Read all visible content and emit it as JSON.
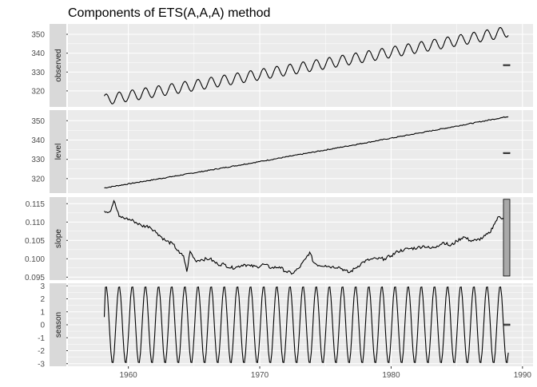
{
  "chart_data": {
    "type": "line",
    "title": "Components of ETS(A,A,A) method",
    "x_ticks": [
      1960,
      1970,
      1980,
      1990
    ],
    "xlim": [
      1955.4,
      1990.8
    ],
    "colors": {
      "panel_bg": "#ebebeb",
      "strip_bg": "#d9d9d9",
      "grid": "#ffffff",
      "line": "#000000",
      "range_bar": "#a9a9a9"
    },
    "panels": [
      {
        "label": "observed",
        "ylim": [
          311.5,
          355.5
        ],
        "y_ticks": [
          320,
          330,
          340,
          350
        ],
        "y_tick_labels": [
          "320",
          "330",
          "340",
          "350"
        ],
        "range_bar": {
          "low": 333.4,
          "high": 333.9
        },
        "generator": {
          "start": 1958.17,
          "end": 1988.9,
          "level_start": 315.3,
          "level_end": 351.5,
          "amplitude": 2.9,
          "quad": 2.5
        }
      },
      {
        "label": "level",
        "ylim": [
          312.5,
          355.5
        ],
        "y_ticks": [
          320,
          330,
          340,
          350
        ],
        "y_tick_labels": [
          "320",
          "330",
          "340",
          "350"
        ],
        "range_bar": {
          "low": 333.0,
          "high": 333.5
        },
        "generator": {
          "start": 1958.17,
          "end": 1988.9,
          "level_start": 315.2,
          "level_end": 352.2,
          "amplitude": 0,
          "quad": 2.5
        }
      },
      {
        "label": "slope",
        "ylim": [
          0.0942,
          0.1168
        ],
        "y_ticks": [
          0.095,
          0.1,
          0.105,
          0.11,
          0.115
        ],
        "y_tick_labels": [
          "0.095",
          "0.100",
          "0.105",
          "0.110",
          "0.115"
        ],
        "range_bar": {
          "low": 0.0953,
          "high": 0.1162
        },
        "points": [
          [
            1958.17,
            0.113
          ],
          [
            1958.6,
            0.1128
          ],
          [
            1958.9,
            0.1158
          ],
          [
            1959.3,
            0.1115
          ],
          [
            1959.8,
            0.111
          ],
          [
            1960.4,
            0.1103
          ],
          [
            1961.0,
            0.109
          ],
          [
            1961.6,
            0.1088
          ],
          [
            1962.2,
            0.107
          ],
          [
            1962.8,
            0.105
          ],
          [
            1963.4,
            0.104
          ],
          [
            1963.9,
            0.1015
          ],
          [
            1964.2,
            0.1008
          ],
          [
            1964.45,
            0.0965
          ],
          [
            1964.7,
            0.102
          ],
          [
            1965.1,
            0.0995
          ],
          [
            1965.6,
            0.0998
          ],
          [
            1966.2,
            0.1
          ],
          [
            1966.8,
            0.0985
          ],
          [
            1967.3,
            0.0985
          ],
          [
            1967.8,
            0.0975
          ],
          [
            1968.3,
            0.0978
          ],
          [
            1968.8,
            0.0985
          ],
          [
            1969.3,
            0.098
          ],
          [
            1969.8,
            0.0978
          ],
          [
            1970.3,
            0.0985
          ],
          [
            1970.9,
            0.0975
          ],
          [
            1971.5,
            0.0978
          ],
          [
            1972.0,
            0.0965
          ],
          [
            1972.5,
            0.096
          ],
          [
            1973.0,
            0.0975
          ],
          [
            1973.5,
            0.1
          ],
          [
            1973.8,
            0.1018
          ],
          [
            1974.1,
            0.099
          ],
          [
            1974.5,
            0.0982
          ],
          [
            1975.0,
            0.0982
          ],
          [
            1975.5,
            0.0978
          ],
          [
            1976.0,
            0.0978
          ],
          [
            1976.5,
            0.0968
          ],
          [
            1976.8,
            0.0962
          ],
          [
            1977.3,
            0.0975
          ],
          [
            1977.9,
            0.0992
          ],
          [
            1978.4,
            0.0998
          ],
          [
            1978.9,
            0.1
          ],
          [
            1979.5,
            0.1
          ],
          [
            1980.0,
            0.1008
          ],
          [
            1980.5,
            0.102
          ],
          [
            1981.0,
            0.1025
          ],
          [
            1981.5,
            0.1028
          ],
          [
            1982.0,
            0.103
          ],
          [
            1982.5,
            0.1035
          ],
          [
            1983.0,
            0.1028
          ],
          [
            1983.5,
            0.1035
          ],
          [
            1984.0,
            0.1045
          ],
          [
            1984.5,
            0.1035
          ],
          [
            1985.0,
            0.1048
          ],
          [
            1985.5,
            0.106
          ],
          [
            1986.0,
            0.105
          ],
          [
            1986.5,
            0.105
          ],
          [
            1987.0,
            0.1058
          ],
          [
            1987.5,
            0.107
          ],
          [
            1987.8,
            0.1092
          ],
          [
            1988.2,
            0.1115
          ],
          [
            1988.5,
            0.111
          ],
          [
            1988.9,
            0.1117
          ]
        ],
        "jitter": 0.00045
      },
      {
        "label": "season",
        "ylim": [
          -3.2,
          3.2
        ],
        "y_ticks": [
          -3,
          -2,
          -1,
          0,
          1,
          2,
          3
        ],
        "y_tick_labels": [
          "-3",
          "-2",
          "-1",
          "0",
          "1",
          "2",
          "3"
        ],
        "range_bar": {
          "low": -0.05,
          "high": 0.05
        },
        "generator": {
          "start": 1958.17,
          "end": 1988.9,
          "level_start": 0,
          "level_end": 0,
          "amplitude": 3.0,
          "quad": 0,
          "start_value": 0.6
        }
      }
    ]
  }
}
